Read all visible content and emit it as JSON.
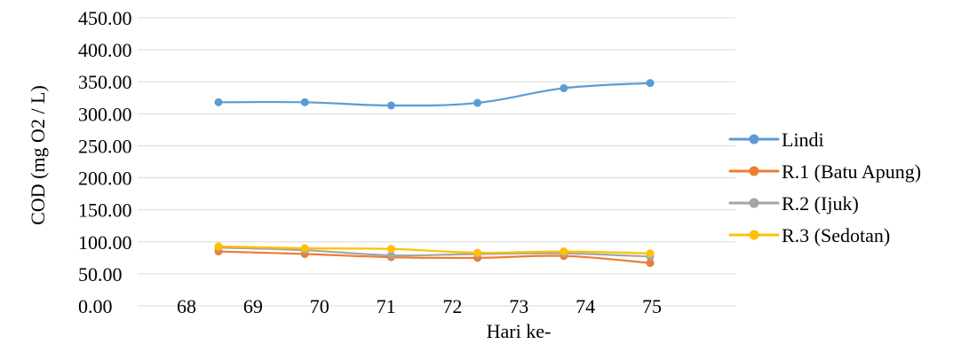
{
  "chart_data": {
    "type": "line",
    "title": "",
    "xlabel": "Hari ke-",
    "ylabel": "COD (mg O2 / L)",
    "ylim": [
      0,
      450
    ],
    "yticks": [
      "0.00",
      "50.00",
      "100.00",
      "150.00",
      "200.00",
      "250.00",
      "300.00",
      "350.00",
      "400.00",
      "450.00"
    ],
    "xticks": [
      "68",
      "69",
      "70",
      "71",
      "72",
      "73",
      "74",
      "75"
    ],
    "grid": true,
    "legend_position": "right",
    "x": [
      "68",
      "70",
      "71",
      "72",
      "74",
      "75"
    ],
    "series": [
      {
        "name": "Lindi",
        "color": "#5B9BD5",
        "values": [
          318,
          318,
          313,
          317,
          340,
          348
        ]
      },
      {
        "name": "R.1 (Batu Apung)",
        "color": "#ED7D31",
        "values": [
          85,
          81,
          76,
          75,
          78,
          67
        ]
      },
      {
        "name": "R.2 (Ijuk)",
        "color": "#A5A5A5",
        "values": [
          91,
          87,
          79,
          81,
          82,
          77
        ]
      },
      {
        "name": "R.3 (Sedotan)",
        "color": "#FFC000",
        "values": [
          93,
          90,
          89,
          83,
          85,
          82
        ]
      }
    ]
  }
}
